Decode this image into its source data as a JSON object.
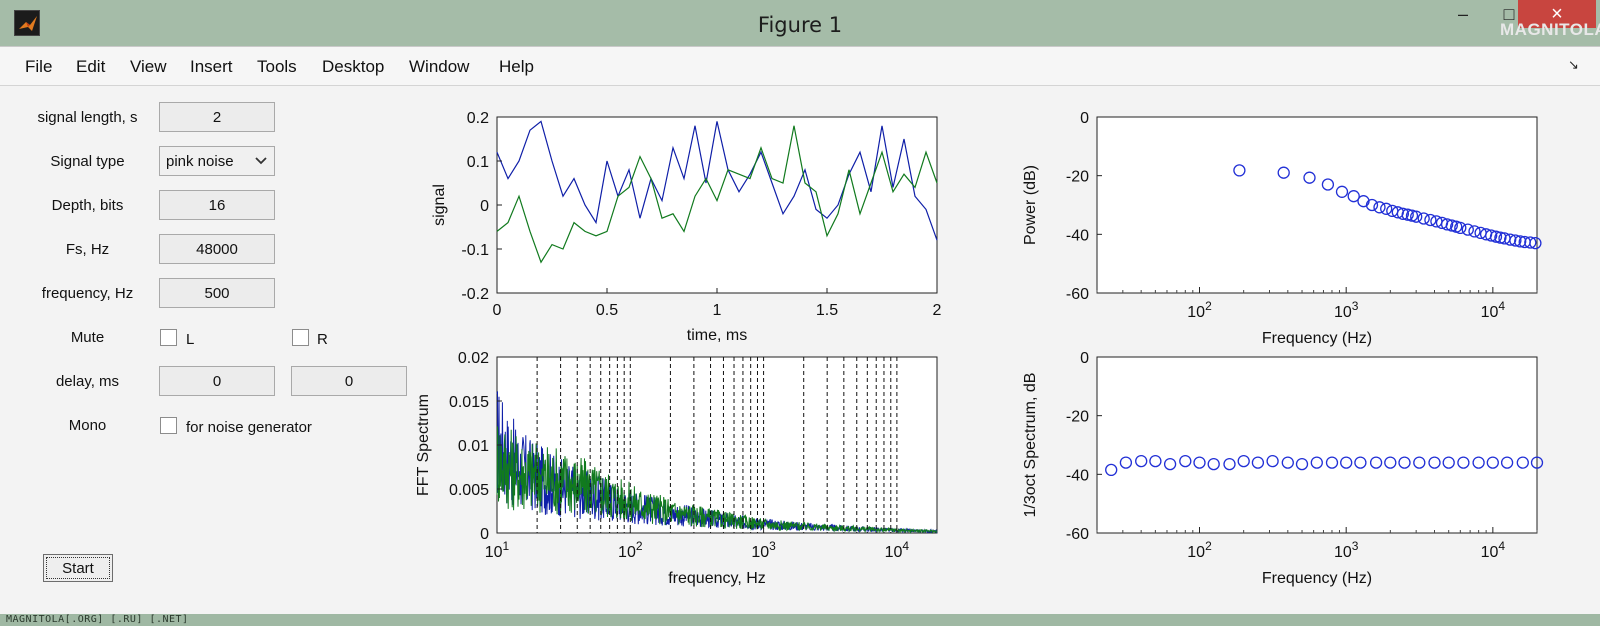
{
  "window": {
    "title": "Figure 1",
    "minimize": "–",
    "maximize": "□",
    "close": "×",
    "watermark_top": "MAGNITOLA",
    "status_watermark": "MAGNITOLA[.ORG] [.RU] [.NET]"
  },
  "menu": {
    "items": [
      "File",
      "Edit",
      "View",
      "Insert",
      "Tools",
      "Desktop",
      "Window",
      "Help"
    ],
    "dock_arrow": "↘"
  },
  "controls": {
    "signal_length": {
      "label": "signal length, s",
      "value": "2"
    },
    "signal_type": {
      "label": "Signal type",
      "value": "pink noise"
    },
    "depth": {
      "label": "Depth, bits",
      "value": "16"
    },
    "fs": {
      "label": "Fs, Hz",
      "value": "48000"
    },
    "frequency": {
      "label": "frequency, Hz",
      "value": "500"
    },
    "mute": {
      "label": "Mute",
      "left": "L",
      "right": "R",
      "left_checked": false,
      "right_checked": false
    },
    "delay": {
      "label": "delay, ms",
      "left_value": "0",
      "right_value": "0"
    },
    "mono": {
      "label": "Mono",
      "option": "for noise generator",
      "checked": false
    },
    "start_label": "Start"
  },
  "colors": {
    "series1": "#0f1fa8",
    "series2": "#117a1e",
    "markers": "#2230d6"
  },
  "chart_data": [
    {
      "type": "line",
      "id": "signal",
      "xlabel": "time, ms",
      "ylabel": "signal",
      "xlim": [
        0,
        2
      ],
      "ylim": [
        -0.2,
        0.2
      ],
      "xticks": [
        "0",
        "0.5",
        "1",
        "1.5",
        "2"
      ],
      "yticks": [
        "0.2",
        "0.1",
        "0",
        "-0.1",
        "-0.2"
      ],
      "series": [
        {
          "name": "blue",
          "x": [
            0,
            0.05,
            0.1,
            0.15,
            0.2,
            0.25,
            0.3,
            0.35,
            0.4,
            0.45,
            0.5,
            0.55,
            0.6,
            0.65,
            0.7,
            0.75,
            0.8,
            0.85,
            0.9,
            0.95,
            1,
            1.05,
            1.1,
            1.15,
            1.2,
            1.25,
            1.3,
            1.35,
            1.4,
            1.45,
            1.5,
            1.55,
            1.6,
            1.65,
            1.7,
            1.75,
            1.8,
            1.85,
            1.9,
            1.95,
            2
          ],
          "y": [
            0.12,
            0.06,
            0.1,
            0.17,
            0.19,
            0.1,
            0.02,
            0.06,
            0.0,
            -0.04,
            0.1,
            0.02,
            0.08,
            -0.03,
            0.06,
            0.01,
            0.13,
            0.06,
            0.18,
            0.05,
            0.19,
            0.08,
            0.03,
            0.07,
            0.12,
            0.05,
            -0.02,
            0.02,
            0.08,
            -0.01,
            -0.03,
            0.0,
            0.07,
            0.12,
            0.03,
            0.18,
            0.04,
            0.15,
            0.02,
            -0.01,
            -0.08
          ]
        },
        {
          "name": "green",
          "x": [
            0,
            0.05,
            0.1,
            0.15,
            0.2,
            0.25,
            0.3,
            0.35,
            0.4,
            0.45,
            0.5,
            0.55,
            0.6,
            0.65,
            0.7,
            0.75,
            0.8,
            0.85,
            0.9,
            0.95,
            1,
            1.05,
            1.1,
            1.15,
            1.2,
            1.25,
            1.3,
            1.35,
            1.4,
            1.45,
            1.5,
            1.55,
            1.6,
            1.65,
            1.7,
            1.75,
            1.8,
            1.85,
            1.9,
            1.95,
            2
          ],
          "y": [
            -0.06,
            -0.04,
            0.02,
            -0.06,
            -0.13,
            -0.09,
            -0.1,
            -0.04,
            -0.06,
            -0.07,
            -0.06,
            0.02,
            0.04,
            0.11,
            0.06,
            -0.03,
            -0.02,
            -0.06,
            0.02,
            0.06,
            0.01,
            0.08,
            0.07,
            0.06,
            0.13,
            0.06,
            0.05,
            0.18,
            0.05,
            0.03,
            -0.07,
            -0.02,
            0.08,
            -0.02,
            0.05,
            0.12,
            0.03,
            0.07,
            0.04,
            0.12,
            0.05
          ]
        }
      ]
    },
    {
      "type": "line",
      "id": "fft",
      "xscale": "log",
      "xlabel": "frequency, Hz",
      "ylabel": "FFT Spectrum",
      "xlim": [
        10,
        20000
      ],
      "ylim": [
        0,
        0.02
      ],
      "yticks": [
        "0.02",
        "0.015",
        "0.01",
        "0.005",
        "0"
      ],
      "xticks": [
        {
          "base": "10",
          "exp": "1"
        },
        {
          "base": "10",
          "exp": "2"
        },
        {
          "base": "10",
          "exp": "3"
        },
        {
          "base": "10",
          "exp": "4"
        }
      ],
      "dashed_lines_hz": [
        20,
        30,
        40,
        50,
        60,
        70,
        80,
        90,
        100,
        200,
        300,
        400,
        500,
        600,
        700,
        800,
        900,
        1000,
        2000,
        3000,
        4000,
        5000,
        6000,
        7000,
        8000,
        9000,
        10000
      ],
      "series": [
        {
          "name": "blue",
          "envelope": [
            [
              10,
              0.0105
            ],
            [
              12,
              0.0085
            ],
            [
              15,
              0.0072
            ],
            [
              20,
              0.0062
            ],
            [
              30,
              0.0052
            ],
            [
              50,
              0.0042
            ],
            [
              100,
              0.003
            ],
            [
              200,
              0.0022
            ],
            [
              500,
              0.0014
            ],
            [
              1000,
              0.001
            ],
            [
              3000,
              0.0006
            ],
            [
              10000,
              0.0003
            ],
            [
              20000,
              0.0002
            ]
          ]
        },
        {
          "name": "green",
          "envelope": [
            [
              10,
              0.0085
            ],
            [
              12,
              0.0075
            ],
            [
              15,
              0.0068
            ],
            [
              20,
              0.0064
            ],
            [
              30,
              0.006
            ],
            [
              50,
              0.005
            ],
            [
              100,
              0.0035
            ],
            [
              200,
              0.0024
            ],
            [
              500,
              0.0015
            ],
            [
              1000,
              0.001
            ],
            [
              3000,
              0.0006
            ],
            [
              10000,
              0.0003
            ],
            [
              20000,
              0.0002
            ]
          ]
        }
      ]
    },
    {
      "type": "scatter",
      "id": "power",
      "xscale": "log",
      "xlabel": "Frequency (Hz)",
      "ylabel": "Power (dB)",
      "xlim": [
        20,
        20000
      ],
      "ylim": [
        -60,
        0
      ],
      "yticks": [
        "0",
        "-20",
        "-40",
        "-60"
      ],
      "xticks": [
        {
          "base": "10",
          "exp": "2"
        },
        {
          "base": "10",
          "exp": "3"
        },
        {
          "base": "10",
          "exp": "4"
        }
      ],
      "points": [
        [
          187,
          -18.2
        ],
        [
          375,
          -19
        ],
        [
          562,
          -20.7
        ],
        [
          750,
          -23
        ],
        [
          937,
          -25.5
        ],
        [
          1125,
          -27
        ],
        [
          1312,
          -28.7
        ],
        [
          1500,
          -30
        ],
        [
          1687,
          -30.8
        ],
        [
          1875,
          -31.3
        ],
        [
          2062,
          -32
        ],
        [
          2250,
          -32.5
        ],
        [
          2437,
          -33
        ],
        [
          2625,
          -33.3
        ],
        [
          2812,
          -33.6
        ],
        [
          3000,
          -34
        ],
        [
          3375,
          -34.6
        ],
        [
          3750,
          -35.1
        ],
        [
          4125,
          -35.6
        ],
        [
          4500,
          -36.1
        ],
        [
          4875,
          -36.6
        ],
        [
          5250,
          -37
        ],
        [
          5625,
          -37.4
        ],
        [
          6000,
          -37.8
        ],
        [
          6750,
          -38.4
        ],
        [
          7500,
          -39
        ],
        [
          8250,
          -39.5
        ],
        [
          9000,
          -40
        ],
        [
          9750,
          -40.4
        ],
        [
          10500,
          -40.8
        ],
        [
          11250,
          -41.1
        ],
        [
          12000,
          -41.4
        ],
        [
          13125,
          -41.8
        ],
        [
          14250,
          -42.1
        ],
        [
          15375,
          -42.4
        ],
        [
          16500,
          -42.6
        ],
        [
          18000,
          -42.8
        ],
        [
          19500,
          -43
        ]
      ]
    },
    {
      "type": "scatter",
      "id": "third_octave",
      "xscale": "log",
      "xlabel": "Frequency (Hz)",
      "ylabel": "1/3oct Spectrum, dB",
      "xlim": [
        20,
        20000
      ],
      "ylim": [
        -60,
        0
      ],
      "yticks": [
        "0",
        "-20",
        "-40",
        "-60"
      ],
      "xticks": [
        {
          "base": "10",
          "exp": "2"
        },
        {
          "base": "10",
          "exp": "3"
        },
        {
          "base": "10",
          "exp": "4"
        }
      ],
      "points": [
        [
          25,
          -38.5
        ],
        [
          31.5,
          -36
        ],
        [
          40,
          -35.5
        ],
        [
          50,
          -35.5
        ],
        [
          63,
          -36.5
        ],
        [
          80,
          -35.5
        ],
        [
          100,
          -36
        ],
        [
          125,
          -36.5
        ],
        [
          160,
          -36.5
        ],
        [
          200,
          -35.5
        ],
        [
          250,
          -36
        ],
        [
          315,
          -35.5
        ],
        [
          400,
          -36
        ],
        [
          500,
          -36.5
        ],
        [
          630,
          -36
        ],
        [
          800,
          -36
        ],
        [
          1000,
          -36
        ],
        [
          1250,
          -36
        ],
        [
          1600,
          -36
        ],
        [
          2000,
          -36
        ],
        [
          2500,
          -36
        ],
        [
          3150,
          -36
        ],
        [
          4000,
          -36
        ],
        [
          5000,
          -36
        ],
        [
          6300,
          -36
        ],
        [
          8000,
          -36
        ],
        [
          10000,
          -36
        ],
        [
          12500,
          -36
        ],
        [
          16000,
          -36
        ],
        [
          20000,
          -36
        ]
      ]
    }
  ]
}
